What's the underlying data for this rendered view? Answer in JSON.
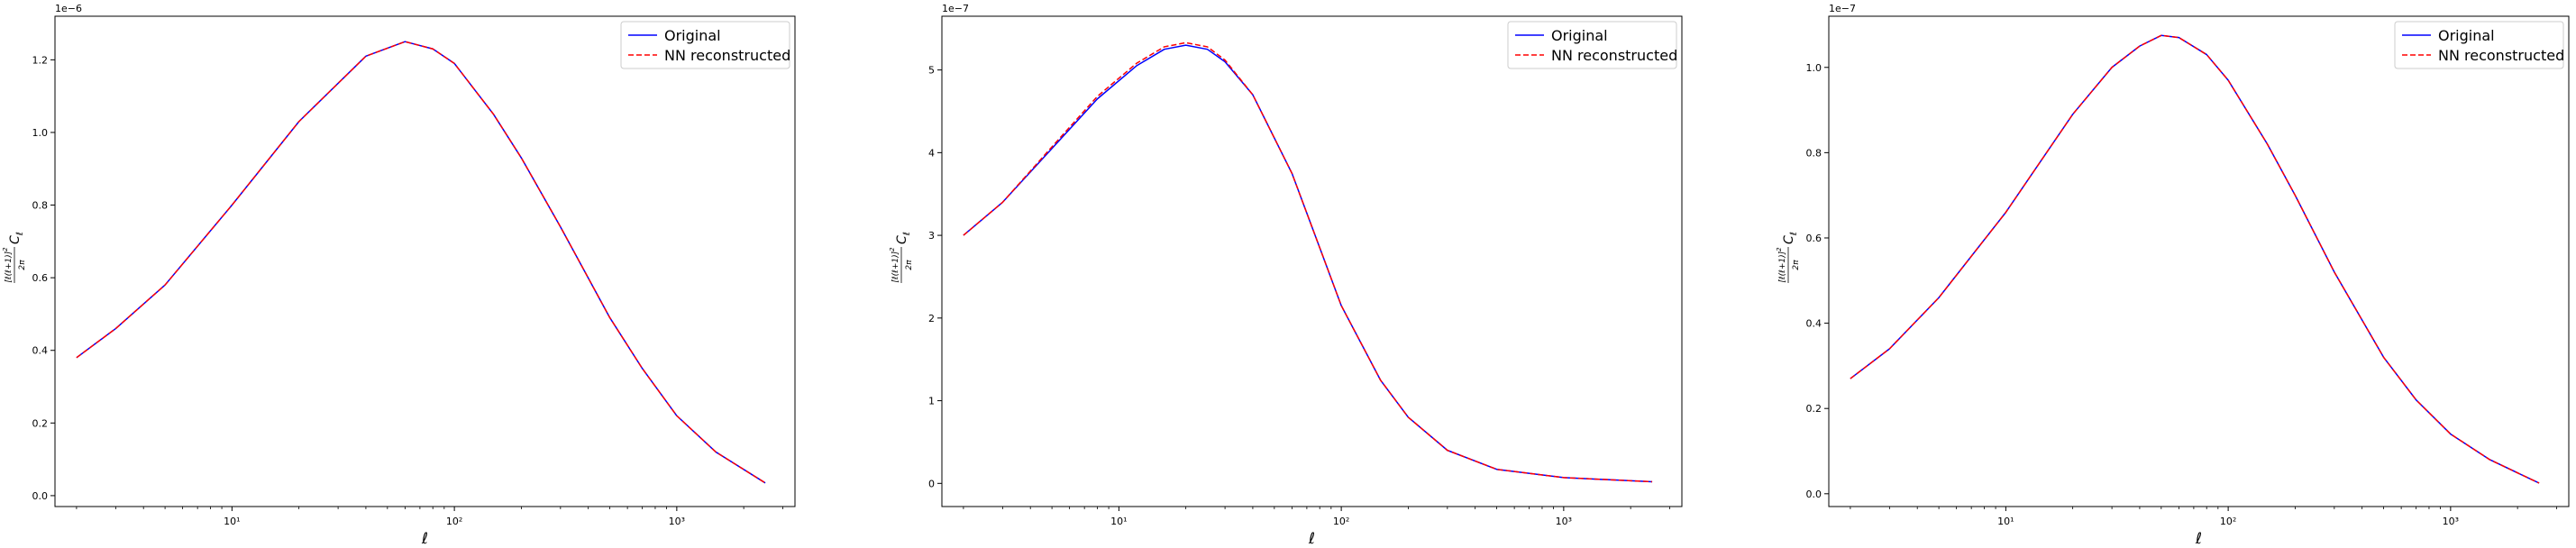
{
  "colors": {
    "original": "#0000ff",
    "reconstructed": "#ff0000",
    "axes": "#000000",
    "legend_border": "#cccccc"
  },
  "chart_data": [
    {
      "type": "line",
      "xscale": "log",
      "xlim": [
        1.6,
        3400
      ],
      "ylim": [
        -0.03,
        1.32
      ],
      "offset_text": "1e−6",
      "xlabel": "ℓ",
      "ylabel_tex": "[ℓ(ℓ+1)]^2 / 2π C_ℓ",
      "xticks": [
        10,
        100,
        1000
      ],
      "xtick_labels": [
        "10¹",
        "10²",
        "10³"
      ],
      "yticks": [
        0.0,
        0.2,
        0.4,
        0.6,
        0.8,
        1.0,
        1.2
      ],
      "ytick_labels": [
        "0.0",
        "0.2",
        "0.4",
        "0.6",
        "0.8",
        "1.0",
        "1.2"
      ],
      "legend": {
        "location": "upper right",
        "entries": [
          "Original",
          "NN reconstructed"
        ]
      },
      "series": [
        {
          "name": "Original",
          "style": "solid",
          "color": "#0000ff",
          "x": [
            2,
            3,
            5,
            10,
            20,
            40,
            60,
            80,
            100,
            150,
            200,
            300,
            500,
            700,
            1000,
            1500,
            2500
          ],
          "y": [
            0.38,
            0.46,
            0.58,
            0.8,
            1.03,
            1.21,
            1.25,
            1.23,
            1.19,
            1.05,
            0.93,
            0.74,
            0.49,
            0.35,
            0.22,
            0.12,
            0.035
          ]
        },
        {
          "name": "NN reconstructed",
          "style": "dashed",
          "color": "#ff0000",
          "x": [
            2,
            3,
            5,
            10,
            20,
            40,
            60,
            80,
            100,
            150,
            200,
            300,
            500,
            700,
            1000,
            1500,
            2500
          ],
          "y": [
            0.38,
            0.46,
            0.58,
            0.8,
            1.03,
            1.21,
            1.25,
            1.23,
            1.19,
            1.05,
            0.93,
            0.74,
            0.49,
            0.35,
            0.22,
            0.12,
            0.035
          ]
        }
      ]
    },
    {
      "type": "line",
      "xscale": "log",
      "xlim": [
        1.6,
        3400
      ],
      "ylim": [
        -0.28,
        5.65
      ],
      "offset_text": "1e−7",
      "xlabel": "ℓ",
      "ylabel_tex": "[ℓ(ℓ+1)]^2 / 2π C_ℓ",
      "xticks": [
        10,
        100,
        1000
      ],
      "xtick_labels": [
        "10¹",
        "10²",
        "10³"
      ],
      "yticks": [
        0,
        1,
        2,
        3,
        4,
        5
      ],
      "ytick_labels": [
        "0",
        "1",
        "2",
        "3",
        "4",
        "5"
      ],
      "legend": {
        "location": "upper right",
        "entries": [
          "Original",
          "NN reconstructed"
        ]
      },
      "series": [
        {
          "name": "Original",
          "style": "solid",
          "color": "#0000ff",
          "x": [
            2,
            3,
            5,
            8,
            12,
            16,
            20,
            25,
            30,
            40,
            60,
            80,
            100,
            150,
            200,
            300,
            500,
            1000,
            2500
          ],
          "y": [
            3.0,
            3.4,
            4.05,
            4.65,
            5.05,
            5.25,
            5.3,
            5.25,
            5.1,
            4.7,
            3.75,
            2.85,
            2.15,
            1.25,
            0.8,
            0.4,
            0.17,
            0.07,
            0.02
          ]
        },
        {
          "name": "NN reconstructed",
          "style": "dashed",
          "color": "#ff0000",
          "x": [
            2,
            3,
            5,
            8,
            12,
            16,
            20,
            25,
            30,
            40,
            60,
            80,
            100,
            150,
            200,
            300,
            500,
            1000,
            2500
          ],
          "y": [
            3.0,
            3.4,
            4.07,
            4.68,
            5.08,
            5.28,
            5.33,
            5.28,
            5.12,
            4.7,
            3.75,
            2.85,
            2.15,
            1.25,
            0.8,
            0.4,
            0.17,
            0.07,
            0.02
          ]
        }
      ]
    },
    {
      "type": "line",
      "xscale": "log",
      "xlim": [
        1.6,
        3400
      ],
      "ylim": [
        -0.03,
        1.12
      ],
      "offset_text": "1e−7",
      "xlabel": "ℓ",
      "ylabel_tex": "[ℓ(ℓ+1)]^2 / 2π C_ℓ",
      "xticks": [
        10,
        100,
        1000
      ],
      "xtick_labels": [
        "10¹",
        "10²",
        "10³"
      ],
      "yticks": [
        0.0,
        0.2,
        0.4,
        0.6,
        0.8,
        1.0
      ],
      "ytick_labels": [
        "0.0",
        "0.2",
        "0.4",
        "0.6",
        "0.8",
        "1.0"
      ],
      "legend": {
        "location": "upper right",
        "entries": [
          "Original",
          "NN reconstructed"
        ]
      },
      "series": [
        {
          "name": "Original",
          "style": "solid",
          "color": "#0000ff",
          "x": [
            2,
            3,
            5,
            10,
            20,
            30,
            40,
            50,
            60,
            80,
            100,
            150,
            200,
            300,
            500,
            700,
            1000,
            1500,
            2500
          ],
          "y": [
            0.27,
            0.34,
            0.46,
            0.66,
            0.89,
            1.0,
            1.05,
            1.075,
            1.07,
            1.03,
            0.97,
            0.82,
            0.7,
            0.52,
            0.32,
            0.22,
            0.14,
            0.08,
            0.025
          ]
        },
        {
          "name": "NN reconstructed",
          "style": "dashed",
          "color": "#ff0000",
          "x": [
            2,
            3,
            5,
            10,
            20,
            30,
            40,
            50,
            60,
            80,
            100,
            150,
            200,
            300,
            500,
            700,
            1000,
            1500,
            2500
          ],
          "y": [
            0.27,
            0.34,
            0.46,
            0.66,
            0.89,
            1.0,
            1.05,
            1.075,
            1.07,
            1.03,
            0.97,
            0.82,
            0.7,
            0.52,
            0.32,
            0.22,
            0.14,
            0.08,
            0.025
          ]
        }
      ]
    }
  ]
}
